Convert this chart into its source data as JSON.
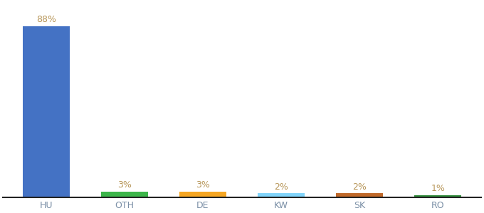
{
  "categories": [
    "HU",
    "OTH",
    "DE",
    "KW",
    "SK",
    "RO"
  ],
  "values": [
    88,
    3,
    3,
    2,
    2,
    1
  ],
  "bar_colors": [
    "#4472c4",
    "#3cb54a",
    "#f5a623",
    "#81d4fa",
    "#c0692a",
    "#2e8b3a"
  ],
  "labels": [
    "88%",
    "3%",
    "3%",
    "2%",
    "2%",
    "1%"
  ],
  "label_fontsize": 9,
  "tick_fontsize": 9,
  "ylim": [
    0,
    100
  ],
  "background_color": "#ffffff",
  "label_color": "#b8975a",
  "tick_color": "#7a8fa6",
  "bar_width": 0.6
}
